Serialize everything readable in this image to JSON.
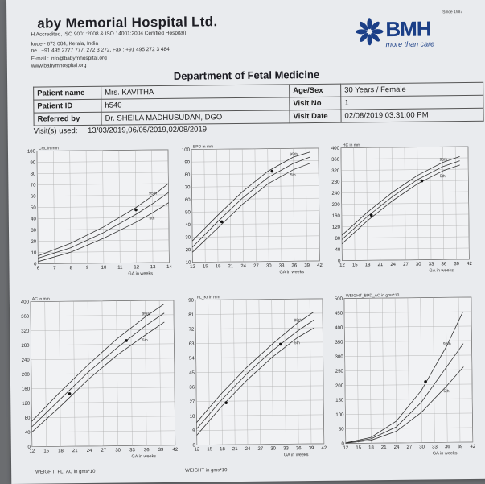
{
  "header": {
    "hospital_name": "aby Memorial Hospital Ltd.",
    "accreditation": "H Accredited, ISO 9001:2008 & ISO 14001:2004 Certified Hospital)",
    "address": "kode - 673 004, Kerala, India",
    "phone": "ne : +91 495 2777 777, 272 3 272, Fax : +91 495 272 3 484",
    "email": "E-mail : info@babymhospital.org",
    "web": "www.babymhospital.org",
    "logo_text": "BMH",
    "logo_tagline": "more than care",
    "logo_since": "Since 1987"
  },
  "department": "Department of Fetal Medicine",
  "patient": {
    "name_label": "Patient name",
    "name": "Mrs. KAVITHA",
    "id_label": "Patient ID",
    "id": "h540",
    "ref_label": "Referred by",
    "ref": "Dr. SHEILA MADHUSUDAN, DGO",
    "age_label": "Age/Sex",
    "age": "30 Years / Female",
    "visit_label": "Visit No",
    "visit": "1",
    "date_label": "Visit Date",
    "date": "02/08/2019 03:31:00 PM",
    "visits_used_label": "Visit(s) used:",
    "visits_used": "13/03/2019,06/05/2019,02/08/2019"
  },
  "bottom_strip": "WEIGHT_FL_AC in gms*10",
  "bottom_strip2": "WEIGHT in gms*10",
  "chart_data": [
    {
      "type": "line",
      "title": "CRL in mm",
      "xlabel": "GA in weeks",
      "xticks": [
        "6",
        "7",
        "8",
        "9",
        "10",
        "11",
        "12",
        "13",
        "14"
      ],
      "yticks": [
        "0",
        "10",
        "20",
        "30",
        "40",
        "50",
        "60",
        "70",
        "80",
        "90",
        "100"
      ],
      "xlim": [
        6,
        14
      ],
      "ylim": [
        0,
        100
      ],
      "series": [
        {
          "name": "95th",
          "x": [
            6,
            8,
            10,
            12,
            13,
            14
          ],
          "y": [
            7,
            18,
            32,
            49,
            59,
            70
          ]
        },
        {
          "name": "",
          "x": [
            6,
            8,
            10,
            12,
            13,
            14
          ],
          "y": [
            5,
            14,
            27,
            43,
            52,
            62
          ]
        },
        {
          "name": "5th",
          "x": [
            6,
            8,
            10,
            12,
            13,
            14
          ],
          "y": [
            2,
            10,
            22,
            36,
            44,
            53
          ]
        }
      ],
      "points": [
        {
          "x": 12,
          "y": 47
        }
      ]
    },
    {
      "type": "line",
      "title": "BPD in mm",
      "xlabel": "GA in weeks",
      "xticks": [
        "12",
        "15",
        "18",
        "21",
        "24",
        "27",
        "30",
        "33",
        "36",
        "39",
        "42"
      ],
      "yticks": [
        "10",
        "20",
        "30",
        "40",
        "50",
        "60",
        "70",
        "80",
        "90",
        "100"
      ],
      "xlim": [
        12,
        42
      ],
      "ylim": [
        10,
        100
      ],
      "series": [
        {
          "name": "95th",
          "x": [
            12,
            18,
            24,
            30,
            36,
            40
          ],
          "y": [
            27,
            47,
            66,
            82,
            93,
            97
          ]
        },
        {
          "name": "",
          "x": [
            12,
            18,
            24,
            30,
            36,
            40
          ],
          "y": [
            22,
            42,
            61,
            77,
            88,
            93
          ]
        },
        {
          "name": "5th",
          "x": [
            12,
            18,
            24,
            30,
            36,
            40
          ],
          "y": [
            18,
            37,
            56,
            72,
            83,
            88
          ]
        }
      ],
      "points": [
        {
          "x": 19,
          "y": 42
        },
        {
          "x": 31,
          "y": 82
        }
      ]
    },
    {
      "type": "line",
      "title": "HC in mm",
      "xlabel": "GA in weeks",
      "xticks": [
        "12",
        "15",
        "18",
        "21",
        "24",
        "27",
        "30",
        "33",
        "36",
        "39",
        "42"
      ],
      "yticks": [
        "0",
        "40",
        "80",
        "120",
        "160",
        "200",
        "240",
        "280",
        "320",
        "360",
        "400"
      ],
      "xlim": [
        12,
        42
      ],
      "ylim": [
        0,
        400
      ],
      "series": [
        {
          "name": "95th",
          "x": [
            12,
            18,
            24,
            30,
            36,
            40
          ],
          "y": [
            90,
            170,
            240,
            300,
            345,
            365
          ]
        },
        {
          "name": "",
          "x": [
            12,
            18,
            24,
            30,
            36,
            40
          ],
          "y": [
            75,
            155,
            225,
            285,
            330,
            350
          ]
        },
        {
          "name": "5th",
          "x": [
            12,
            18,
            24,
            30,
            36,
            40
          ],
          "y": [
            60,
            140,
            210,
            270,
            315,
            335
          ]
        }
      ],
      "points": [
        {
          "x": 19,
          "y": 160
        },
        {
          "x": 31,
          "y": 280
        }
      ]
    },
    {
      "type": "line",
      "title": "AC in mm",
      "xlabel": "GA in weeks",
      "xticks": [
        "12",
        "15",
        "18",
        "21",
        "24",
        "27",
        "30",
        "33",
        "36",
        "39",
        "42"
      ],
      "yticks": [
        "0",
        "40",
        "80",
        "120",
        "160",
        "200",
        "240",
        "280",
        "320",
        "360",
        "400"
      ],
      "xlim": [
        12,
        42
      ],
      "ylim": [
        0,
        400
      ],
      "series": [
        {
          "name": "95th",
          "x": [
            12,
            18,
            24,
            30,
            36,
            40
          ],
          "y": [
            70,
            150,
            225,
            295,
            355,
            390
          ]
        },
        {
          "name": "",
          "x": [
            12,
            18,
            24,
            30,
            36,
            40
          ],
          "y": [
            55,
            130,
            205,
            270,
            330,
            365
          ]
        },
        {
          "name": "5th",
          "x": [
            12,
            18,
            24,
            30,
            36,
            40
          ],
          "y": [
            40,
            110,
            185,
            250,
            305,
            340
          ]
        }
      ],
      "points": [
        {
          "x": 20,
          "y": 145
        },
        {
          "x": 32,
          "y": 290
        }
      ]
    },
    {
      "type": "line",
      "title": "FL_Kr in mm",
      "xlabel": "GA in weeks",
      "xticks": [
        "12",
        "15",
        "18",
        "21",
        "24",
        "27",
        "30",
        "33",
        "36",
        "39",
        "42"
      ],
      "yticks": [
        "0",
        "9",
        "18",
        "27",
        "36",
        "45",
        "54",
        "63",
        "72",
        "81",
        "90"
      ],
      "xlim": [
        12,
        42
      ],
      "ylim": [
        0,
        90
      ],
      "series": [
        {
          "name": "95th",
          "x": [
            12,
            18,
            24,
            30,
            36,
            40
          ],
          "y": [
            14,
            32,
            48,
            62,
            75,
            82
          ]
        },
        {
          "name": "",
          "x": [
            12,
            18,
            24,
            30,
            36,
            40
          ],
          "y": [
            10,
            28,
            44,
            58,
            70,
            77
          ]
        },
        {
          "name": "5th",
          "x": [
            12,
            18,
            24,
            30,
            36,
            40
          ],
          "y": [
            6,
            24,
            40,
            54,
            66,
            72
          ]
        }
      ],
      "points": [
        {
          "x": 19,
          "y": 26
        },
        {
          "x": 32,
          "y": 62
        }
      ]
    },
    {
      "type": "line",
      "title": "WEIGHT_BPD_AC in gms*10",
      "xlabel": "GA in weeks",
      "xticks": [
        "12",
        "15",
        "18",
        "21",
        "24",
        "27",
        "30",
        "33",
        "36",
        "39",
        "42"
      ],
      "yticks": [
        "0",
        "50",
        "100",
        "150",
        "200",
        "250",
        "300",
        "350",
        "400",
        "450",
        "500"
      ],
      "xlim": [
        12,
        42
      ],
      "ylim": [
        0,
        500
      ],
      "series": [
        {
          "name": "95th",
          "x": [
            12,
            18,
            24,
            30,
            36,
            40
          ],
          "y": [
            2,
            20,
            75,
            180,
            330,
            450
          ]
        },
        {
          "name": "",
          "x": [
            12,
            18,
            24,
            30,
            36,
            40
          ],
          "y": [
            2,
            15,
            55,
            140,
            260,
            340
          ]
        },
        {
          "name": "5th",
          "x": [
            12,
            18,
            24,
            30,
            36,
            40
          ],
          "y": [
            1,
            10,
            40,
            105,
            195,
            260
          ]
        }
      ],
      "points": [
        {
          "x": 31,
          "y": 210
        }
      ]
    }
  ]
}
